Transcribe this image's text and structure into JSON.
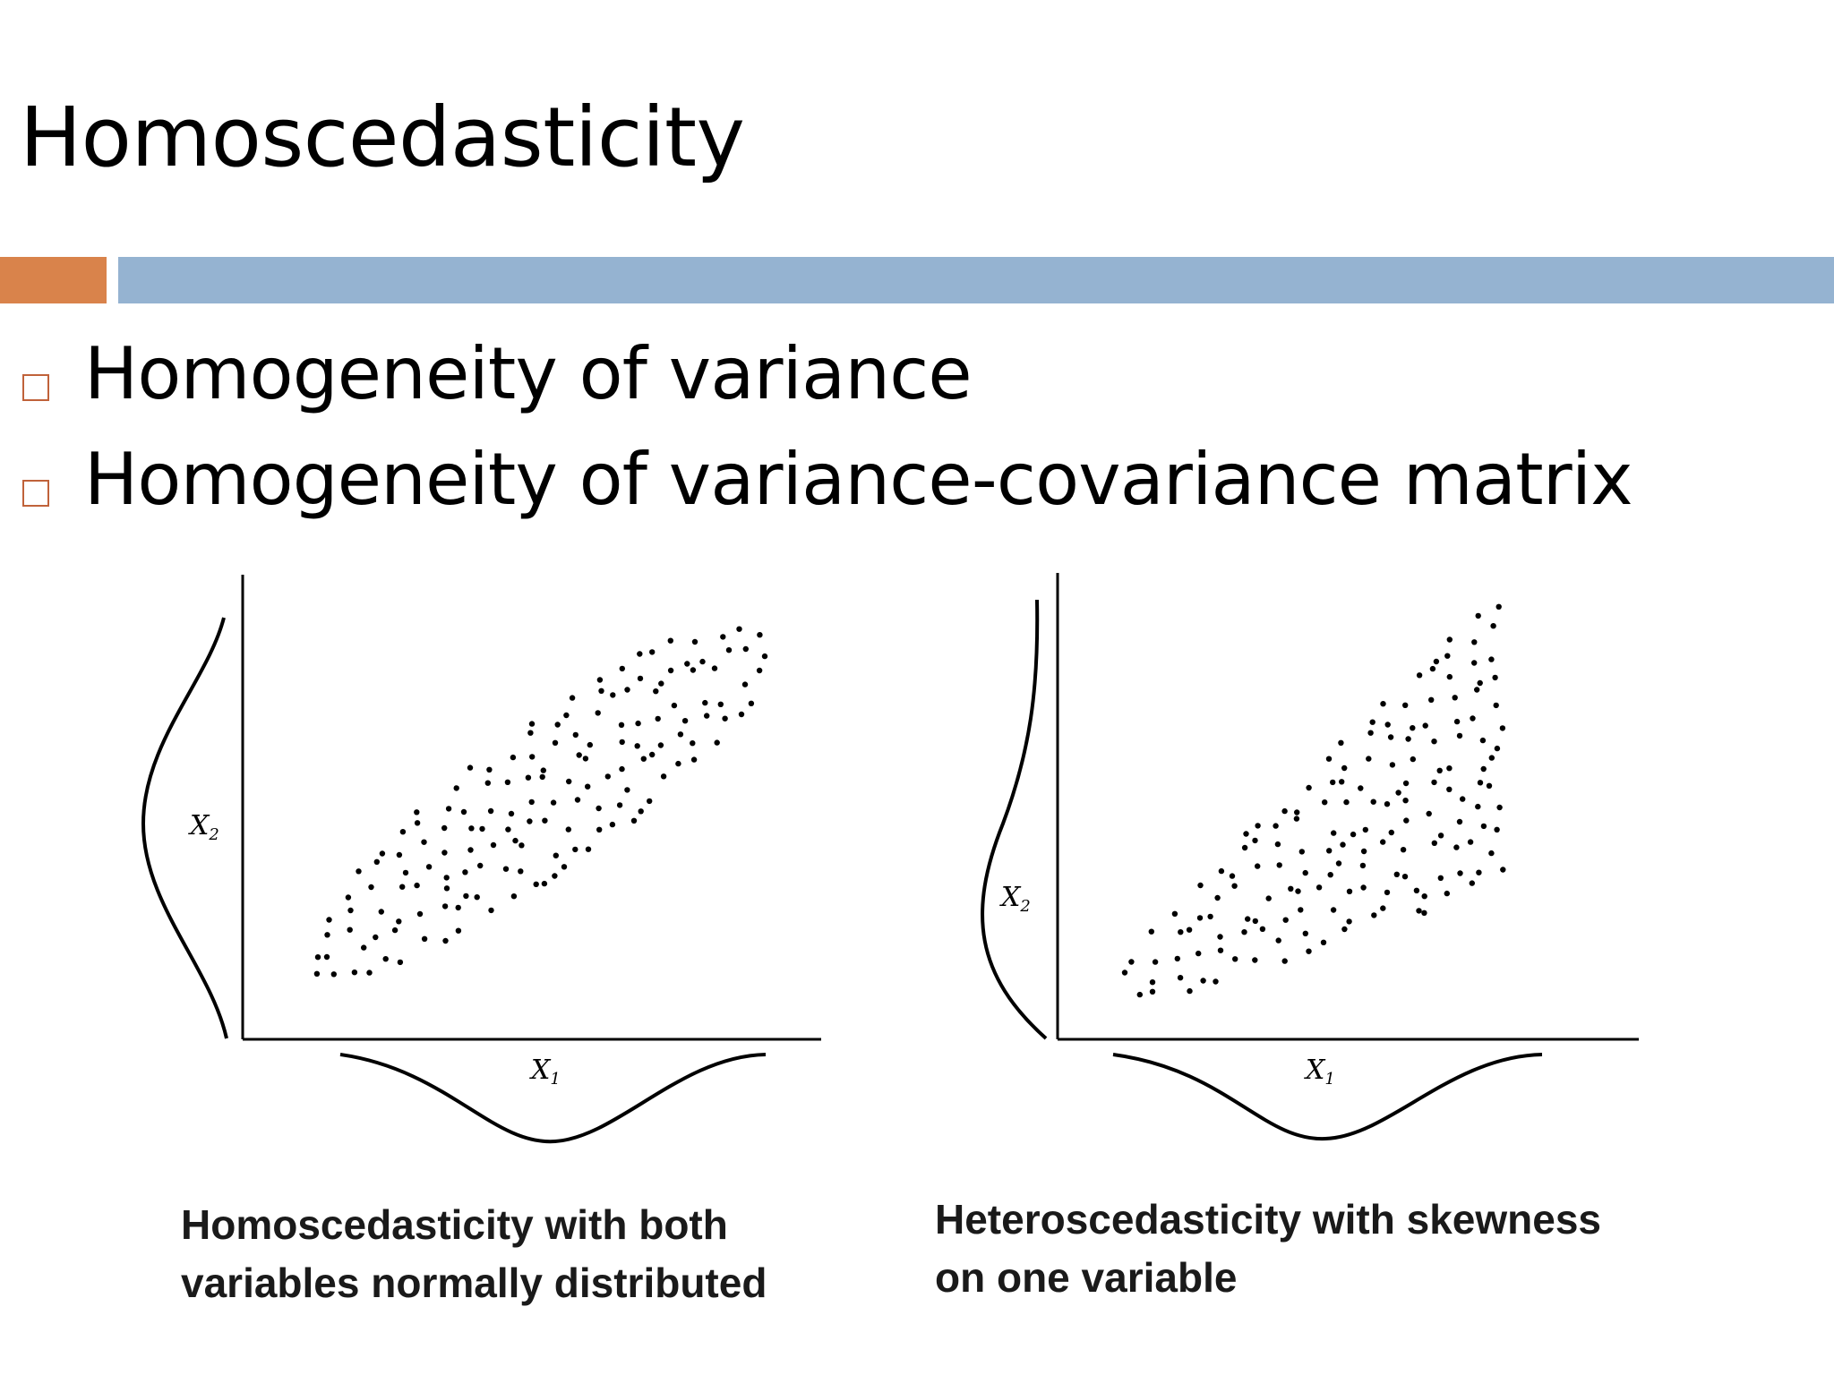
{
  "slide": {
    "title": "Homoscedasticity",
    "colors": {
      "accent_bar": "#d9834b",
      "main_bar": "#95b3d1",
      "bullet_box": "#c0623a"
    },
    "bullets": [
      "Homogeneity of variance",
      "Homogeneity of variance-covariance matrix"
    ]
  },
  "figure": {
    "left_panel": {
      "y_axis_label": "X2",
      "x_axis_label": "X1",
      "caption_lines": [
        "Homoscedasticity with both",
        "variables normally distributed"
      ]
    },
    "right_panel": {
      "y_axis_label": "X2",
      "x_axis_label": "X1",
      "caption_lines": [
        "Heteroscedasticity with skewness",
        "on one variable"
      ]
    }
  }
}
